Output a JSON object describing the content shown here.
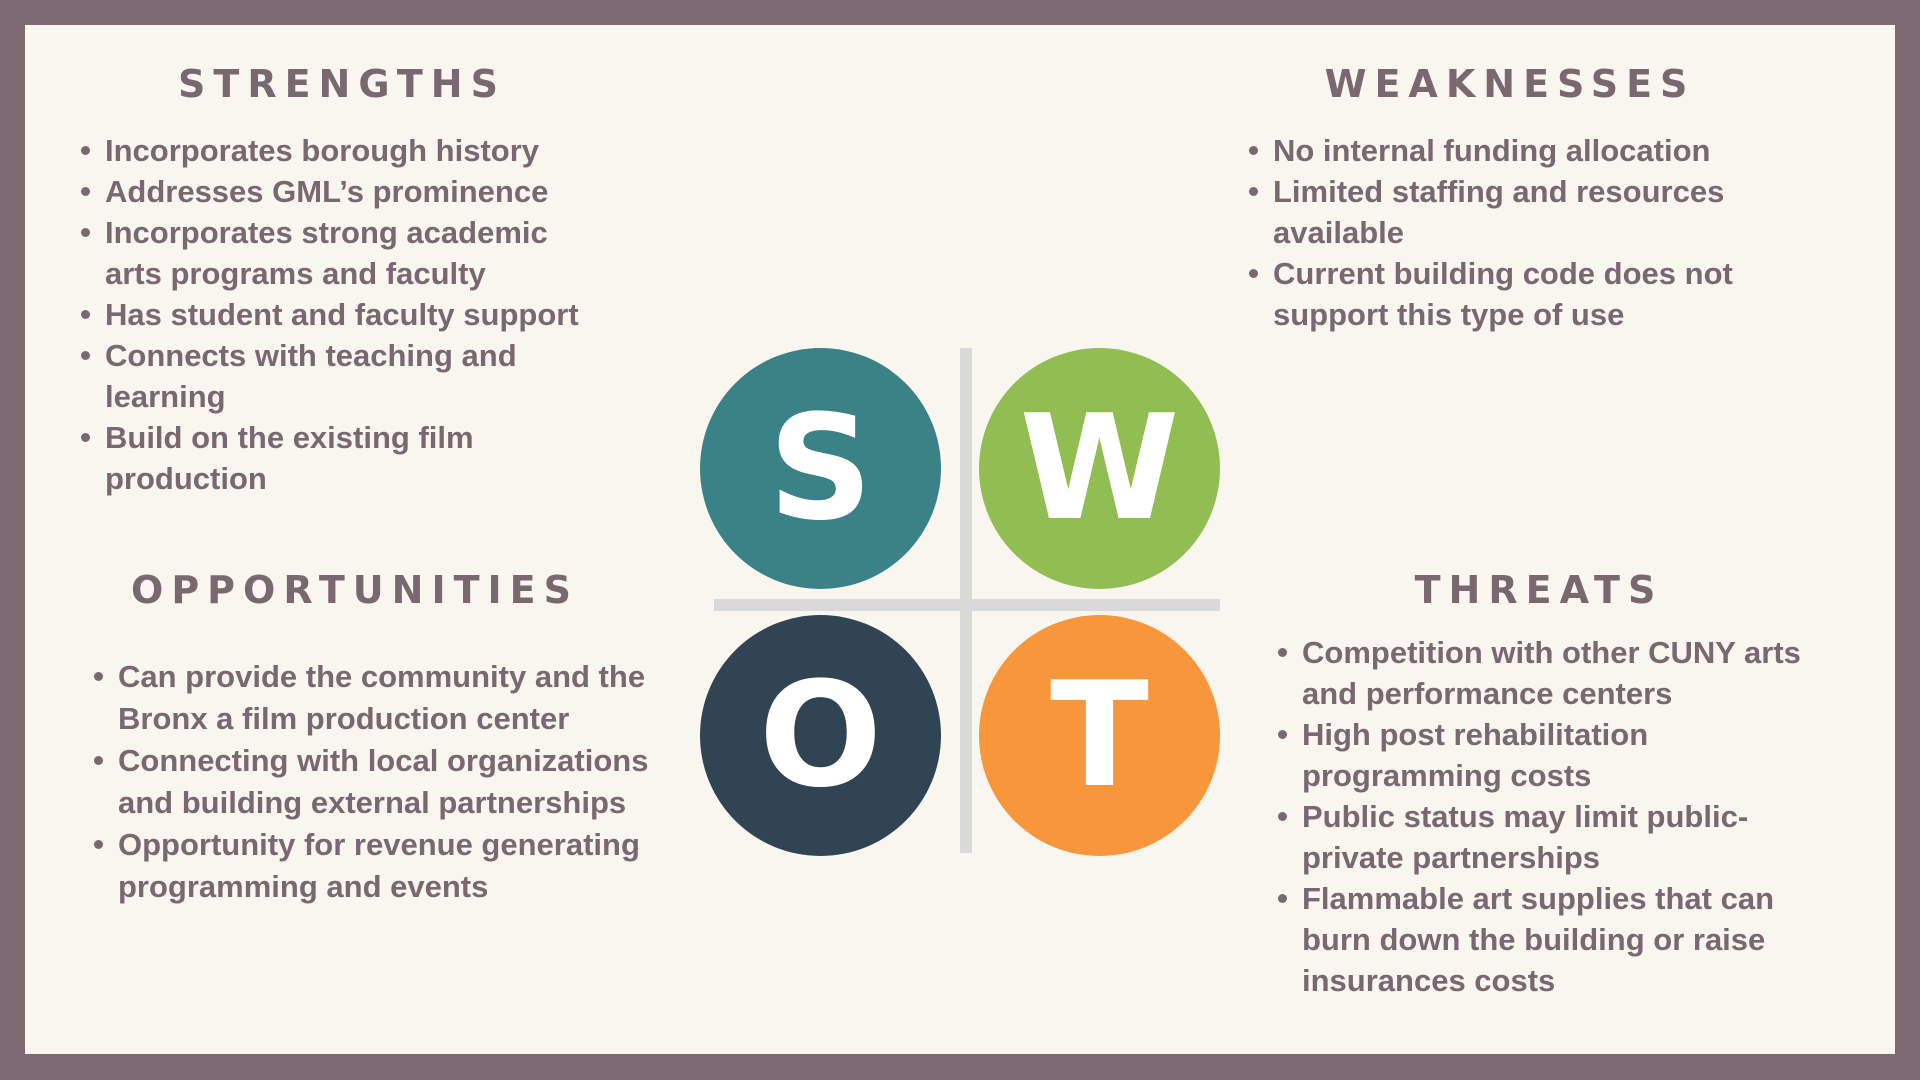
{
  "strengths": {
    "title": "STRENGTHS",
    "items": [
      "Incorporates borough history",
      "Addresses GML’s prominence",
      "Incorporates strong academic arts programs and faculty",
      "Has student and faculty support",
      "Connects with teaching and learning",
      "Build on the existing film production"
    ]
  },
  "weaknesses": {
    "title": "WEAKNESSES",
    "items": [
      "No internal funding allocation",
      "Limited staffing and resources available",
      "Current building code does not support this type of use"
    ]
  },
  "opportunities": {
    "title": "OPPORTUNITIES",
    "items": [
      "Can provide the community and the Bronx a film production center",
      "Connecting with local organizations and building external partnerships",
      "Opportunity for revenue generating programming and events"
    ]
  },
  "threats": {
    "title": "THREATS",
    "items": [
      "Competition with other CUNY arts and performance centers",
      "High post rehabilitation programming costs",
      "Public status may limit public-private partnerships",
      "Flammable art supplies that can burn down the building or raise insurances costs"
    ]
  },
  "swot": {
    "s": "S",
    "w": "W",
    "o": "O",
    "t": "T"
  },
  "colors": {
    "frame": "#7d6a73",
    "background": "#f8f6ef",
    "text": "#7a6870",
    "s": "#3a8286",
    "w": "#92bd52",
    "o": "#314453",
    "t": "#f8963c",
    "divider": "#d9d9d9"
  }
}
